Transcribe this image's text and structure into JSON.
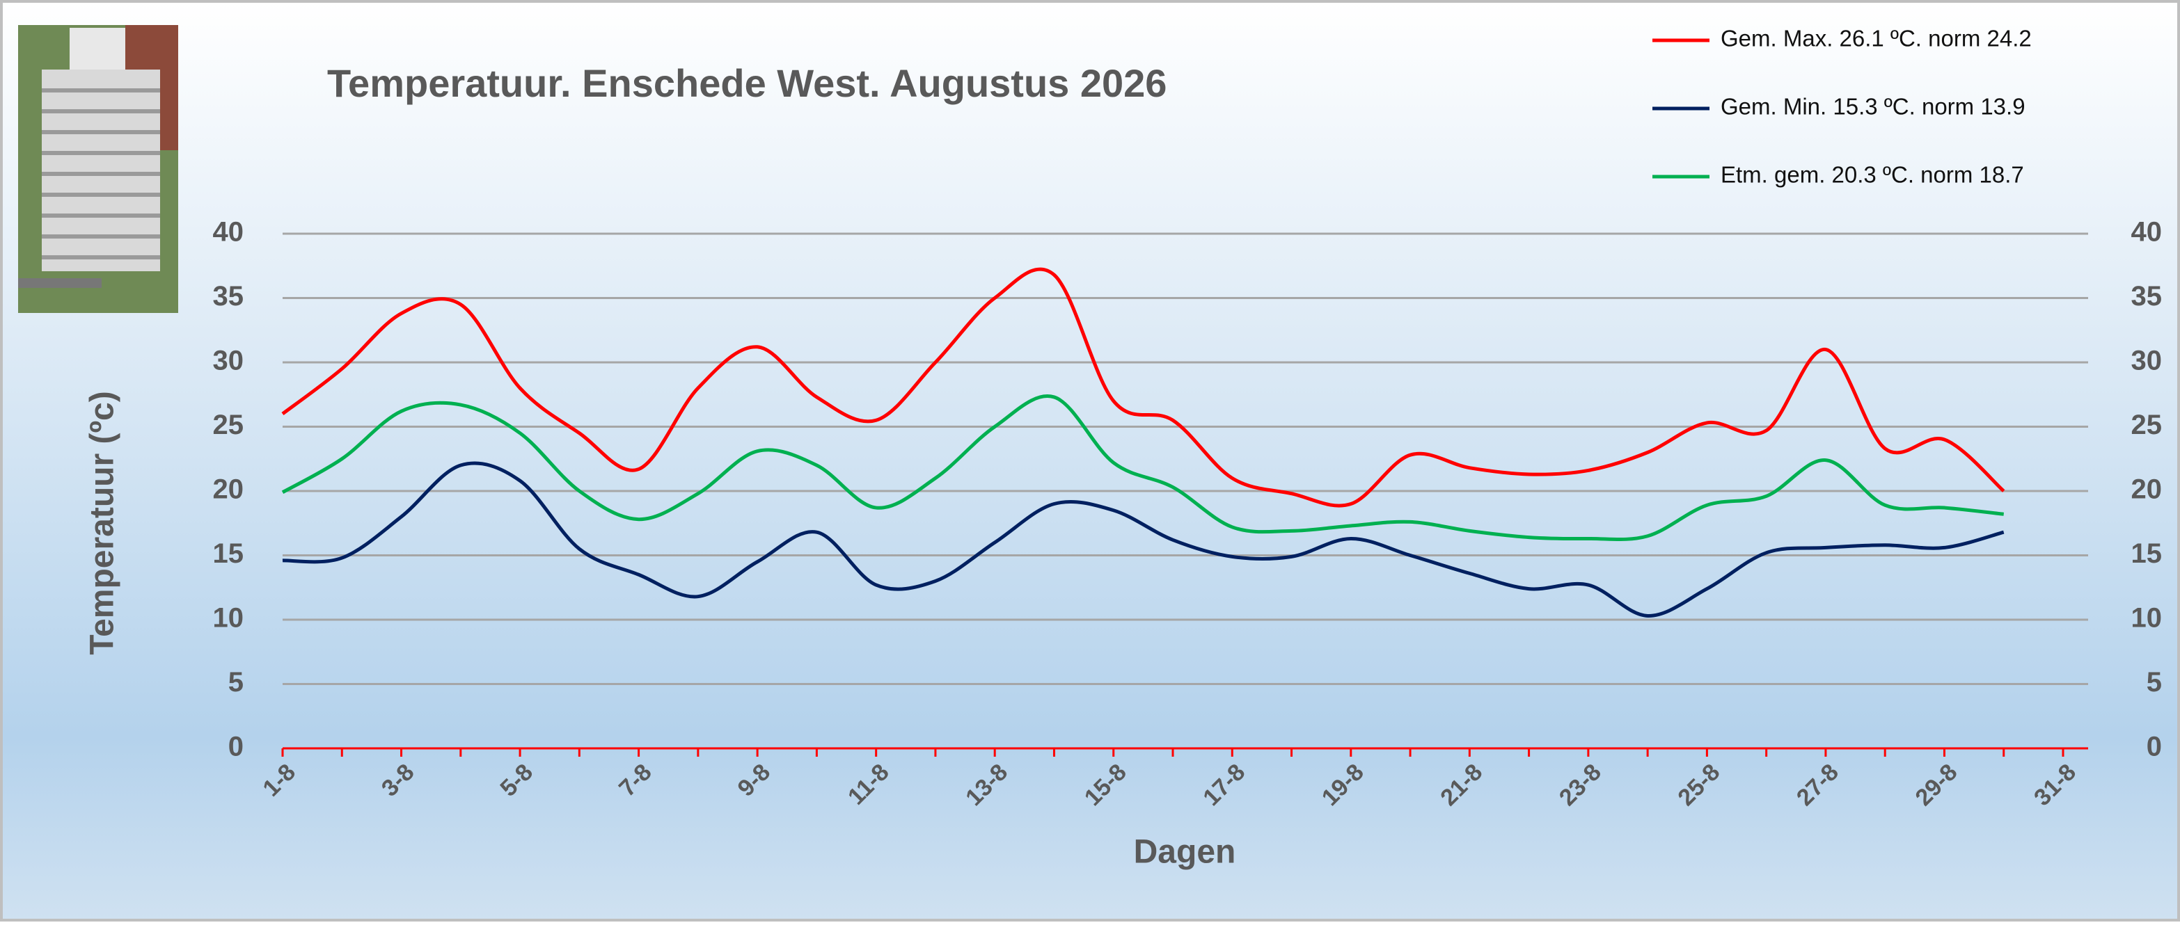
{
  "chart_data": {
    "type": "line",
    "title": "Temperatuur. Enschede West. Augustus 2026",
    "xlabel": "Dagen",
    "ylabel": "Temperatuur (ºc)",
    "categories": [
      "1-8",
      null,
      "3-8",
      null,
      "5-8",
      null,
      "7-8",
      null,
      "9-8",
      null,
      "11-8",
      null,
      "13-8",
      null,
      "15-8",
      null,
      "17-8",
      null,
      "19-8",
      null,
      "21-8",
      null,
      "23-8",
      null,
      "25-8",
      null,
      "27-8",
      null,
      "29-8",
      null,
      "31-8"
    ],
    "series": [
      {
        "name": "Gem. Max. 26.1  ºC. norm 24.2",
        "color": "#ff0000",
        "values": [
          26,
          29.5,
          33.8,
          34.5,
          28,
          24.5,
          21.7,
          28,
          31.2,
          27.3,
          25.5,
          30,
          35,
          36.8,
          27,
          25.5,
          21,
          19.8,
          19,
          22.8,
          21.8,
          21.3,
          21.6,
          23,
          25.3,
          24.7,
          31,
          23.3,
          24,
          20,
          null
        ]
      },
      {
        "name": "Gem. Min. 15.3  ºC. norm 13.9",
        "color": "#002060",
        "values": [
          14.6,
          14.8,
          18,
          22,
          20.8,
          15.5,
          13.5,
          11.8,
          14.5,
          16.8,
          12.7,
          13,
          16,
          19,
          18.5,
          16.2,
          14.9,
          14.9,
          16.3,
          15,
          13.6,
          12.4,
          12.7,
          10.3,
          12.4,
          15.2,
          15.6,
          15.8,
          15.6,
          16.8,
          null
        ]
      },
      {
        "name": "Etm. gem. 20.3  ºC. norm 18.7",
        "color": "#00b050",
        "values": [
          19.9,
          22.5,
          26.2,
          26.7,
          24.5,
          20,
          17.8,
          19.8,
          23.1,
          22,
          18.7,
          21,
          25,
          27.3,
          22.2,
          20.3,
          17.2,
          16.9,
          17.3,
          17.6,
          16.9,
          16.4,
          16.3,
          16.5,
          18.9,
          19.6,
          22.4,
          18.9,
          18.7,
          18.2,
          null
        ]
      }
    ],
    "ylim": [
      0,
      40
    ],
    "yticks": [
      0,
      5,
      10,
      15,
      20,
      25,
      30,
      35,
      40
    ],
    "grid": true,
    "legend": "upper right"
  }
}
